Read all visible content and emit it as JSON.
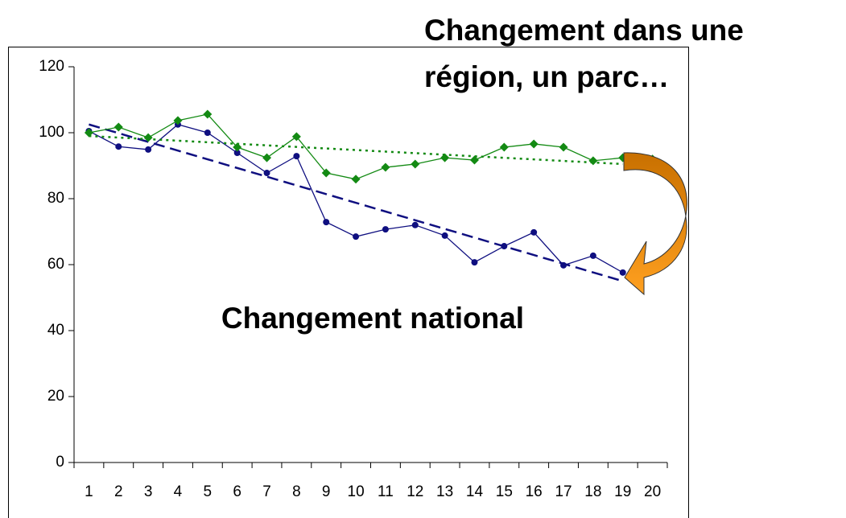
{
  "chart_data": {
    "type": "line",
    "x": [
      1,
      2,
      3,
      4,
      5,
      6,
      7,
      8,
      9,
      10,
      11,
      12,
      13,
      14,
      15,
      16,
      17,
      18,
      19,
      20
    ],
    "xlim": [
      0.5,
      20.5
    ],
    "ylim": [
      0,
      120
    ],
    "yticks": [
      0,
      20,
      40,
      60,
      80,
      100,
      120
    ],
    "series": [
      {
        "color": "#0f0f80",
        "marker": "circle",
        "trend_style": "dashed",
        "values": [
          100.5,
          95.8,
          94.9,
          102.5,
          100,
          93.9,
          87.8,
          92.9,
          72.9,
          68.5,
          70.7,
          72,
          68.8,
          60.7,
          65.6,
          69.8,
          59.8,
          62.7,
          57.6,
          null
        ],
        "trend": {
          "x": [
            1,
            19
          ],
          "values": [
            102.5,
            55
          ]
        }
      },
      {
        "color": "#138a13",
        "marker": "diamond",
        "trend_style": "dotted",
        "values": [
          100,
          101.7,
          98.5,
          103.7,
          105.6,
          95.6,
          92.4,
          98.8,
          87.8,
          85.9,
          89.5,
          90.5,
          92.4,
          91.7,
          95.6,
          96.6,
          95.6,
          91.5,
          92.4,
          92
        ],
        "trend": {
          "x": [
            1,
            19
          ],
          "values": [
            99,
            90.5
          ]
        }
      }
    ],
    "annotations": [
      {
        "text": "Changement dans une",
        "color": "#0f6b0f"
      },
      {
        "text": "région, un parc…",
        "color": "#0f6b0f"
      },
      {
        "text": "Changement national",
        "color": "#0f2a70"
      }
    ]
  }
}
